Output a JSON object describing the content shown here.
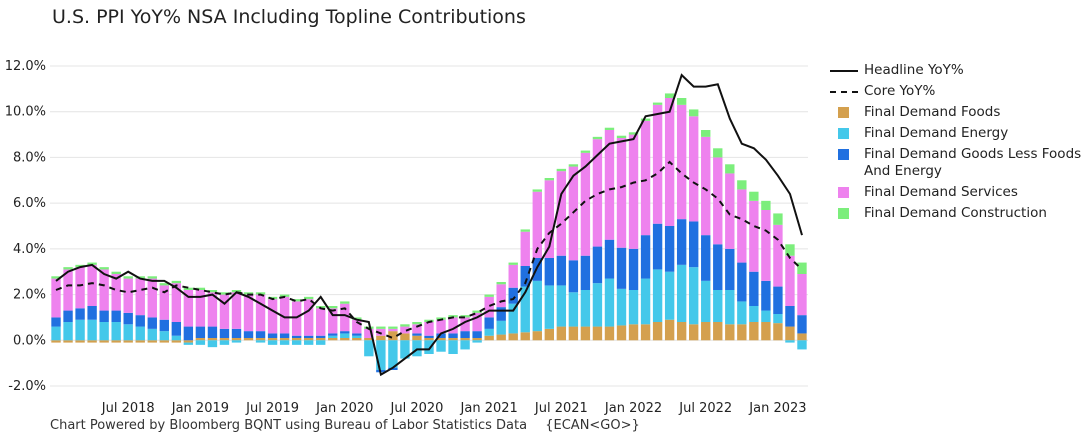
{
  "title": "U.S. PPI YoY% NSA Including Topline Contributions",
  "footer": {
    "source": "Chart Powered by Bloomberg BQNT using Bureau of Labor Statistics Data",
    "code": "{ECAN<GO>}"
  },
  "colors": {
    "foods": "#d4a04e",
    "energy": "#44c8ea",
    "goods": "#2070e0",
    "services": "#ee82ee",
    "construction": "#7cee7c",
    "headline": "#111111",
    "core": "#111111",
    "grid": "#e4e4e4"
  },
  "legend": [
    {
      "key": "headline",
      "label": "Headline YoY%",
      "kind": "line"
    },
    {
      "key": "core",
      "label": "Core YoY%",
      "kind": "dash"
    },
    {
      "key": "foods",
      "label": "Final Demand Foods",
      "kind": "box"
    },
    {
      "key": "energy",
      "label": "Final Demand Energy",
      "kind": "box"
    },
    {
      "key": "goods",
      "label": "Final Demand Goods Less Foods And Energy",
      "kind": "box"
    },
    {
      "key": "services",
      "label": "Final Demand Services",
      "kind": "box"
    },
    {
      "key": "construction",
      "label": "Final Demand Construction",
      "kind": "box"
    }
  ],
  "chart_data": {
    "type": "bar",
    "stacked": true,
    "title": "U.S. PPI YoY% NSA Including Topline Contributions",
    "xlabel": "",
    "ylabel": "",
    "ylim": [
      -2,
      12
    ],
    "yticks": [
      -2,
      0,
      2,
      4,
      6,
      8,
      10,
      12
    ],
    "ytick_labels": [
      "-2.0%",
      "0.0%",
      "2.0%",
      "4.0%",
      "6.0%",
      "8.0%",
      "10.0%",
      "12.0%"
    ],
    "xtick_labels": [
      {
        "index": 6,
        "label": "Jul 2018"
      },
      {
        "index": 12,
        "label": "Jan 2019"
      },
      {
        "index": 18,
        "label": "Jul 2019"
      },
      {
        "index": 24,
        "label": "Jan 2020"
      },
      {
        "index": 30,
        "label": "Jul 2020"
      },
      {
        "index": 36,
        "label": "Jan 2021"
      },
      {
        "index": 42,
        "label": "Jul 2021"
      },
      {
        "index": 48,
        "label": "Jan 2022"
      },
      {
        "index": 54,
        "label": "Jul 2022"
      },
      {
        "index": 60,
        "label": "Jan 2023"
      }
    ],
    "categories": [
      "Jan 2018",
      "Feb 2018",
      "Mar 2018",
      "Apr 2018",
      "May 2018",
      "Jun 2018",
      "Jul 2018",
      "Aug 2018",
      "Sep 2018",
      "Oct 2018",
      "Nov 2018",
      "Dec 2018",
      "Jan 2019",
      "Feb 2019",
      "Mar 2019",
      "Apr 2019",
      "May 2019",
      "Jun 2019",
      "Jul 2019",
      "Aug 2019",
      "Sep 2019",
      "Oct 2019",
      "Nov 2019",
      "Dec 2019",
      "Jan 2020",
      "Feb 2020",
      "Mar 2020",
      "Apr 2020",
      "May 2020",
      "Jun 2020",
      "Jul 2020",
      "Aug 2020",
      "Sep 2020",
      "Oct 2020",
      "Nov 2020",
      "Dec 2020",
      "Jan 2021",
      "Feb 2021",
      "Mar 2021",
      "Apr 2021",
      "May 2021",
      "Jun 2021",
      "Jul 2021",
      "Aug 2021",
      "Sep 2021",
      "Oct 2021",
      "Nov 2021",
      "Dec 2021",
      "Jan 2022",
      "Feb 2022",
      "Mar 2022",
      "Apr 2022",
      "May 2022",
      "Jun 2022",
      "Jul 2022",
      "Aug 2022",
      "Sep 2022",
      "Oct 2022",
      "Nov 2022",
      "Dec 2022",
      "Jan 2023",
      "Feb 2023",
      "Mar 2023"
    ],
    "series": [
      {
        "key": "foods",
        "name": "Final Demand Foods",
        "values": [
          -0.1,
          -0.1,
          -0.1,
          -0.1,
          -0.1,
          -0.1,
          -0.1,
          -0.1,
          -0.1,
          -0.1,
          -0.1,
          -0.1,
          0.1,
          0.1,
          0.1,
          0.1,
          0.1,
          0.1,
          0.1,
          0.1,
          0.1,
          0.1,
          0.1,
          0.1,
          0.1,
          0.1,
          0.1,
          0.2,
          0.4,
          0.3,
          0.2,
          0.1,
          0.1,
          0.1,
          0.1,
          0.1,
          0.2,
          0.25,
          0.3,
          0.35,
          0.4,
          0.5,
          0.6,
          0.6,
          0.6,
          0.6,
          0.6,
          0.65,
          0.7,
          0.7,
          0.8,
          0.9,
          0.8,
          0.7,
          0.8,
          0.8,
          0.7,
          0.7,
          0.8,
          0.8,
          0.75,
          0.6,
          0.3
        ]
      },
      {
        "key": "energy",
        "name": "Final Demand Energy",
        "values": [
          0.6,
          0.8,
          0.9,
          0.9,
          0.8,
          0.8,
          0.7,
          0.6,
          0.5,
          0.4,
          0.2,
          -0.1,
          -0.2,
          -0.3,
          -0.2,
          -0.1,
          0.0,
          -0.1,
          -0.2,
          -0.2,
          -0.2,
          -0.2,
          -0.2,
          0.1,
          0.2,
          0.1,
          -0.7,
          -1.3,
          -1.2,
          -0.8,
          -0.7,
          -0.6,
          -0.5,
          -0.6,
          -0.4,
          -0.1,
          0.3,
          0.6,
          1.3,
          2.0,
          2.2,
          1.9,
          1.8,
          1.5,
          1.6,
          1.9,
          2.1,
          1.6,
          1.5,
          2.0,
          2.3,
          2.1,
          2.5,
          2.5,
          1.8,
          1.4,
          1.5,
          1.0,
          0.7,
          0.5,
          0.4,
          -0.1,
          -0.4
        ]
      },
      {
        "key": "goods",
        "name": "Final Demand Goods Less Foods And Energy",
        "values": [
          0.4,
          0.5,
          0.5,
          0.6,
          0.5,
          0.5,
          0.5,
          0.5,
          0.5,
          0.5,
          0.6,
          0.6,
          0.5,
          0.5,
          0.4,
          0.4,
          0.3,
          0.3,
          0.2,
          0.2,
          0.1,
          0.1,
          0.1,
          0.1,
          0.1,
          0.1,
          0.0,
          -0.1,
          -0.1,
          0.0,
          0.1,
          0.1,
          0.2,
          0.2,
          0.3,
          0.3,
          0.5,
          0.6,
          0.7,
          0.9,
          1.0,
          1.2,
          1.3,
          1.4,
          1.5,
          1.6,
          1.7,
          1.8,
          1.8,
          1.9,
          2.0,
          2.0,
          2.0,
          2.0,
          2.0,
          2.0,
          1.8,
          1.7,
          1.5,
          1.3,
          1.2,
          0.9,
          0.8
        ]
      },
      {
        "key": "services",
        "name": "Final Demand Services",
        "values": [
          1.7,
          1.8,
          1.8,
          1.8,
          1.8,
          1.6,
          1.5,
          1.6,
          1.7,
          1.5,
          1.7,
          1.6,
          1.6,
          1.5,
          1.5,
          1.6,
          1.6,
          1.6,
          1.5,
          1.6,
          1.5,
          1.6,
          1.2,
          1.1,
          1.2,
          0.6,
          0.4,
          0.3,
          0.1,
          0.3,
          0.4,
          0.6,
          0.6,
          0.7,
          0.6,
          0.8,
          0.9,
          1.0,
          1.0,
          1.5,
          2.9,
          3.4,
          3.7,
          4.1,
          4.5,
          4.7,
          4.8,
          4.8,
          5.0,
          5.0,
          5.2,
          5.6,
          5.0,
          4.6,
          4.3,
          3.8,
          3.3,
          3.2,
          3.1,
          3.1,
          2.7,
          2.2,
          1.8
        ]
      },
      {
        "key": "construction",
        "name": "Final Demand Construction",
        "values": [
          0.1,
          0.1,
          0.1,
          0.1,
          0.1,
          0.1,
          0.1,
          0.1,
          0.1,
          0.1,
          0.1,
          0.1,
          0.1,
          0.1,
          0.1,
          0.1,
          0.1,
          0.1,
          0.1,
          0.1,
          0.1,
          0.1,
          0.1,
          0.1,
          0.1,
          0.1,
          0.1,
          0.1,
          0.1,
          0.1,
          0.1,
          0.1,
          0.1,
          0.1,
          0.1,
          0.1,
          0.1,
          0.1,
          0.1,
          0.1,
          0.1,
          0.1,
          0.1,
          0.1,
          0.1,
          0.1,
          0.1,
          0.1,
          0.1,
          0.1,
          0.1,
          0.2,
          0.3,
          0.3,
          0.3,
          0.4,
          0.4,
          0.4,
          0.4,
          0.4,
          0.5,
          0.5,
          0.5
        ]
      }
    ],
    "headline": [
      2.6,
      3.0,
      3.2,
      3.3,
      2.9,
      2.7,
      3.0,
      2.7,
      2.6,
      2.6,
      2.3,
      1.9,
      1.9,
      2.0,
      1.6,
      2.1,
      1.9,
      1.6,
      1.3,
      1.0,
      1.0,
      1.3,
      1.9,
      1.1,
      1.1,
      0.9,
      0.8,
      -1.5,
      -1.2,
      -0.8,
      -0.4,
      -0.4,
      0.3,
      0.5,
      0.8,
      1.0,
      1.3,
      1.3,
      1.3,
      2.1,
      3.2,
      4.1,
      6.4,
      7.2,
      7.6,
      8.1,
      8.6,
      8.7,
      8.8,
      9.8,
      9.9,
      10.0,
      11.6,
      11.1,
      11.1,
      11.2,
      9.7,
      8.6,
      8.4,
      7.9,
      7.2,
      6.4,
      4.6
    ]
  }
}
